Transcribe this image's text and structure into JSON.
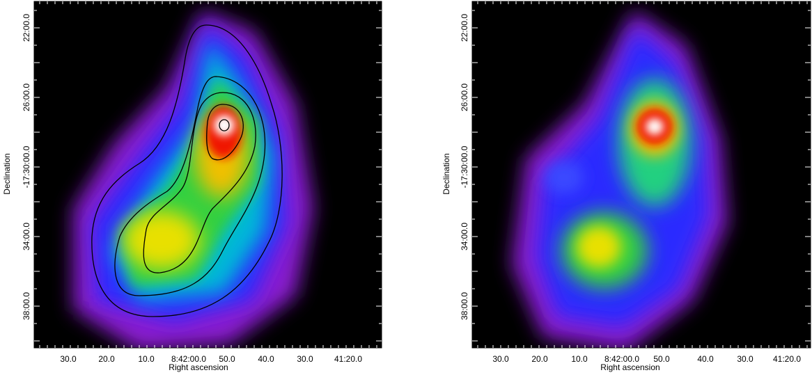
{
  "panels": [
    {
      "x_axis_label": "Right ascension",
      "y_axis_label": "Declination",
      "x_tick_labels": [
        "30.0",
        "20.0",
        "10.0",
        "8:42:00.0",
        "50.0",
        "40.0",
        "30.0",
        "41:20.0"
      ],
      "y_tick_labels": [
        "22:00.0",
        "26:00.0",
        "-17:30:00.0",
        "34:00.0",
        "38:00.0"
      ]
    },
    {
      "x_axis_label": "Right ascension",
      "y_axis_label": "Declination",
      "x_tick_labels": [
        "30.0",
        "20.0",
        "10.0",
        "8:42:00.0",
        "50.0",
        "40.0",
        "30.0",
        "41:20.0"
      ],
      "y_tick_labels": [
        "22:00.0",
        "26:00.0",
        "-17:30:00.0",
        "34:00.0",
        "38:00.0"
      ]
    }
  ]
}
